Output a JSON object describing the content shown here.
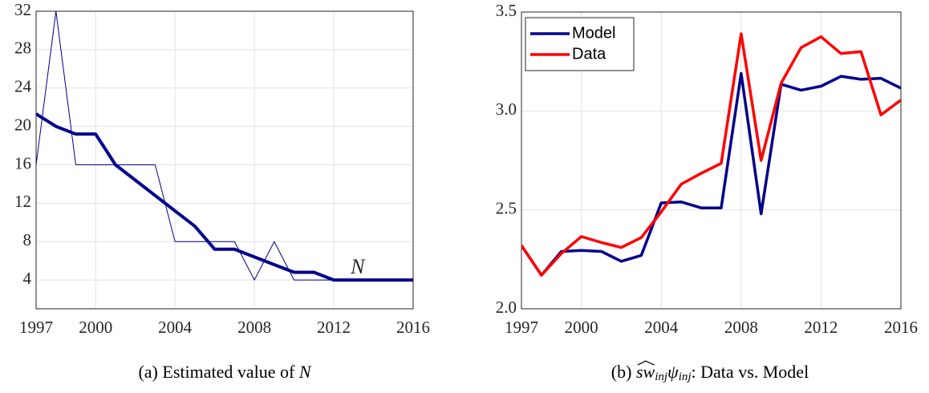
{
  "chart_data": [
    {
      "type": "line",
      "x": [
        1997,
        1998,
        1999,
        2000,
        2001,
        2002,
        2003,
        2004,
        2005,
        2006,
        2007,
        2008,
        2009,
        2010,
        2011,
        2012,
        2013,
        2014,
        2015,
        2016
      ],
      "xlim": [
        1997,
        2016
      ],
      "xticks": [
        1997,
        2000,
        2004,
        2008,
        2012,
        2016
      ],
      "ylim": [
        1,
        32
      ],
      "yticks": [
        4,
        8,
        12,
        16,
        20,
        24,
        28,
        32
      ],
      "grid": true,
      "series": [
        {
          "color": "#00008b",
          "linewidth": 1,
          "values": [
            16,
            32,
            16,
            16,
            16,
            16,
            16,
            8,
            8,
            8,
            8,
            4,
            8,
            4,
            4,
            4,
            4,
            4,
            4,
            4
          ]
        },
        {
          "color": "#00008b",
          "linewidth": 4,
          "values": [
            21.3,
            20,
            19.2,
            19.2,
            16,
            14.4,
            12.8,
            11.2,
            9.6,
            7.2,
            7.2,
            6.4,
            5.6,
            4.8,
            4.8,
            4,
            4,
            4,
            4,
            4
          ]
        }
      ],
      "annotation": "N",
      "caption": {
        "label": "(a) Estimated value of ",
        "symbol": "N"
      }
    },
    {
      "type": "line",
      "x": [
        1997,
        1998,
        1999,
        2000,
        2001,
        2002,
        2003,
        2004,
        2005,
        2006,
        2007,
        2008,
        2009,
        2010,
        2011,
        2012,
        2013,
        2014,
        2015,
        2016
      ],
      "xlim": [
        1997,
        2016
      ],
      "xticks": [
        1997,
        2000,
        2004,
        2008,
        2012,
        2016
      ],
      "ylim": [
        2,
        3.5
      ],
      "yticks": [
        {
          "value": 2,
          "label": "2.0"
        },
        2.5,
        {
          "value": 3,
          "label": "3.0"
        },
        3.5
      ],
      "grid": true,
      "legend": "northwest",
      "series": [
        {
          "name": "Model",
          "color": "#00008b",
          "linewidth": 3.5,
          "values": [
            2.32,
            2.17,
            2.29,
            2.295,
            2.29,
            2.24,
            2.27,
            2.535,
            2.54,
            2.51,
            2.51,
            3.19,
            2.48,
            3.135,
            3.105,
            3.125,
            3.175,
            3.16,
            3.165,
            3.115
          ]
        },
        {
          "name": "Data",
          "color": "#ff0000",
          "linewidth": 3.5,
          "values": [
            2.32,
            2.17,
            2.28,
            2.365,
            2.335,
            2.31,
            2.36,
            2.49,
            2.63,
            2.685,
            2.735,
            3.39,
            2.75,
            3.14,
            3.32,
            3.375,
            3.29,
            3.3,
            2.98,
            3.055
          ]
        }
      ],
      "caption": {
        "label": "(b) ",
        "symbol": "sw",
        "sub1": "inj",
        "symbol2": "ψ",
        "sub2": "inj",
        "rest": ": Data vs. Model"
      }
    }
  ]
}
